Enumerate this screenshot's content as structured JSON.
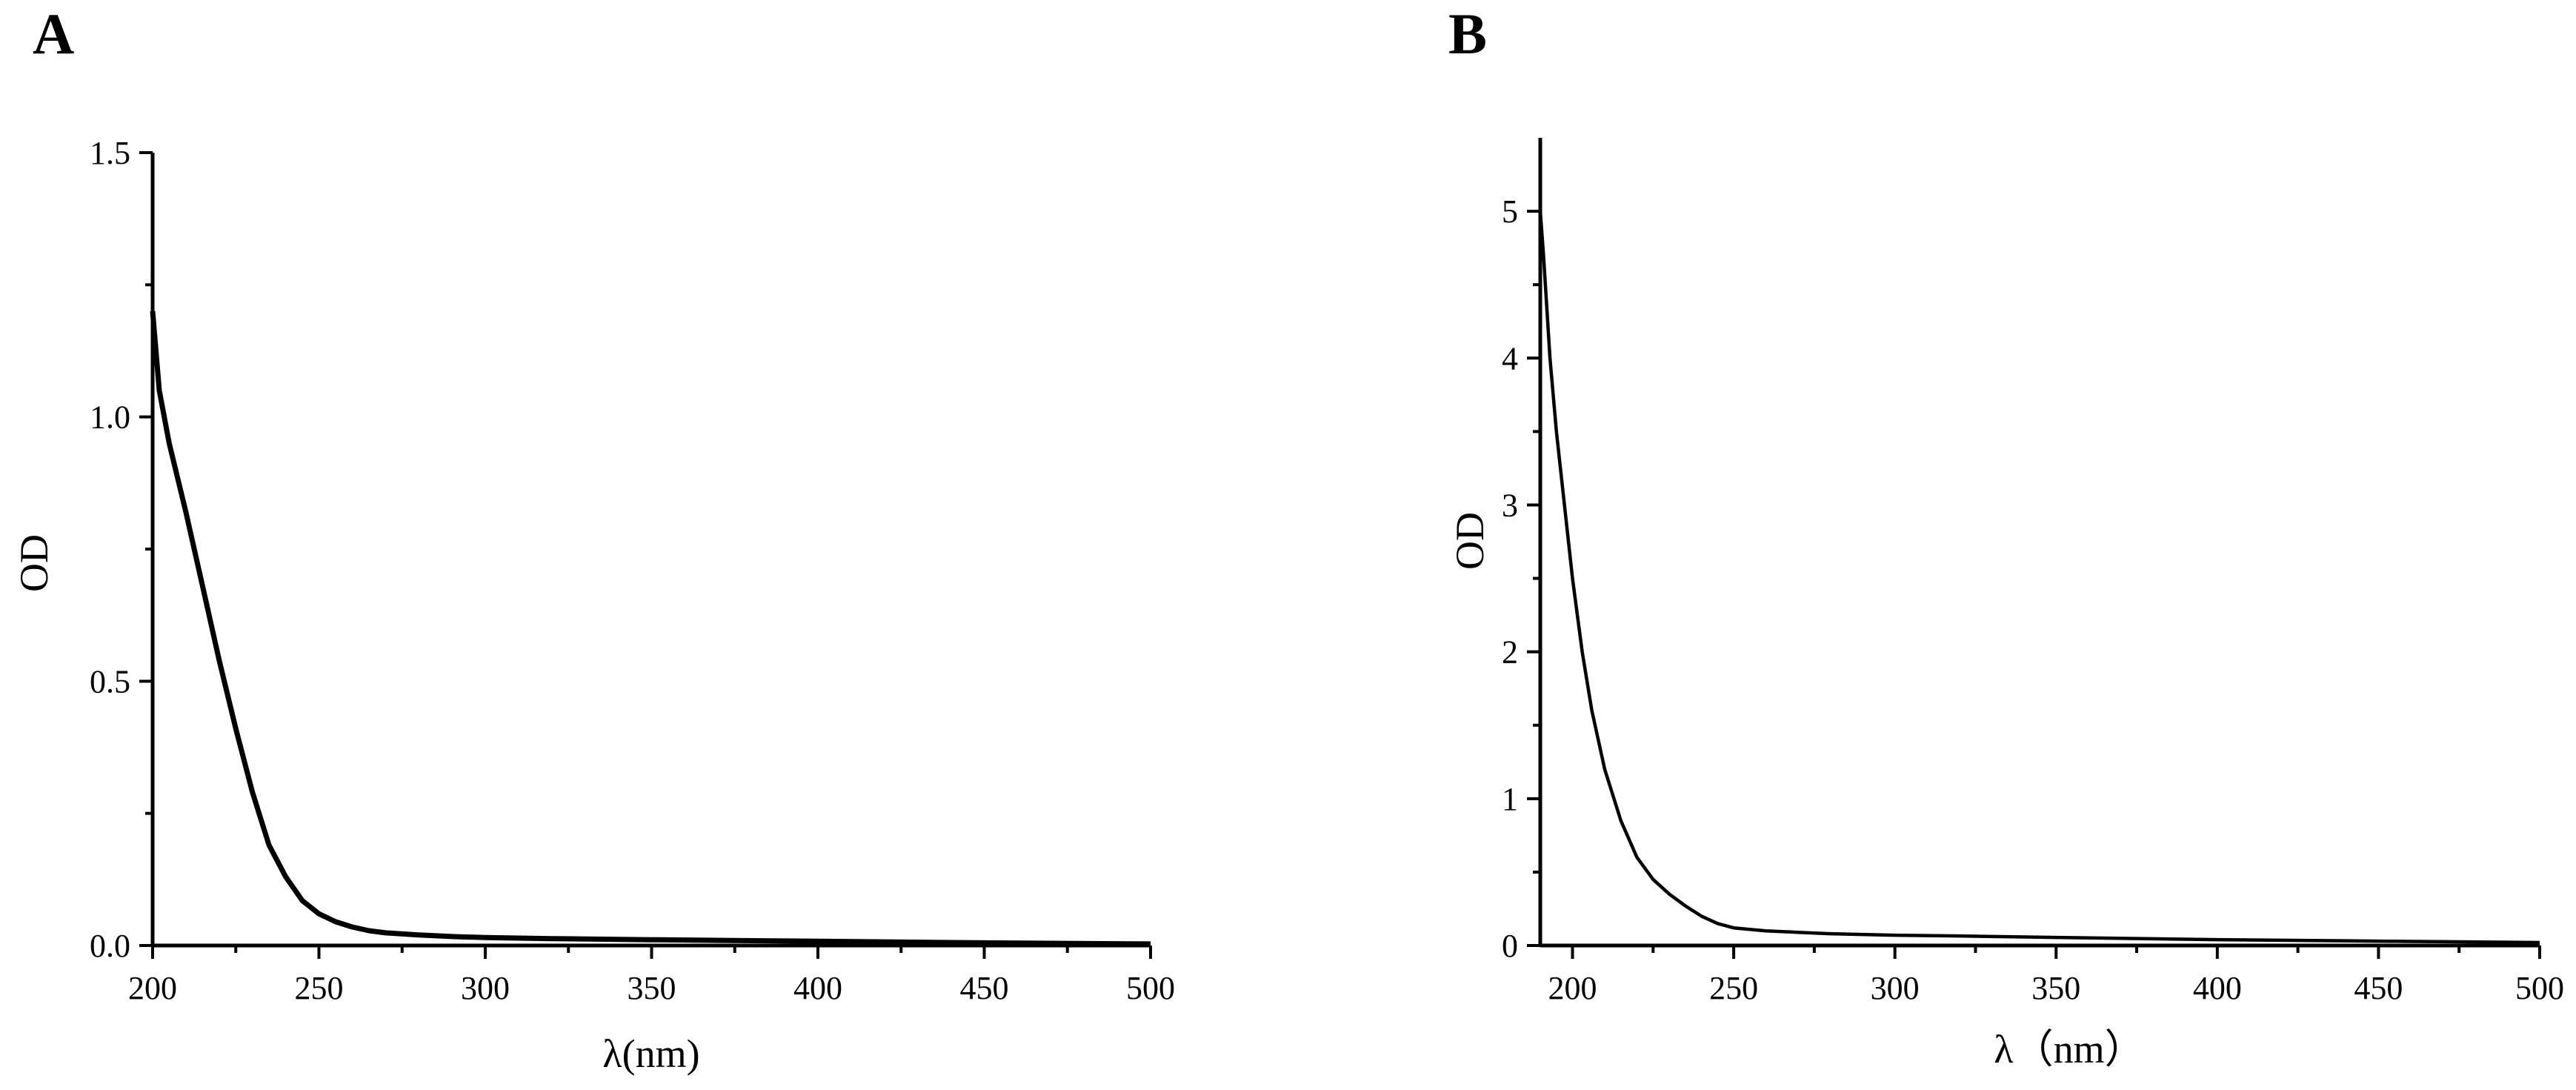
{
  "panels": {
    "a": {
      "label": "A"
    },
    "b": {
      "label": "B"
    }
  },
  "chart_data": [
    {
      "panel": "A",
      "type": "line",
      "xlabel": "λ(nm)",
      "ylabel": "OD",
      "xlim": [
        200,
        500
      ],
      "ylim": [
        0,
        1.5
      ],
      "x_ticks": [
        "200",
        "250",
        "300",
        "350",
        "400",
        "450",
        "500"
      ],
      "y_ticks": [
        "0.0",
        "0.5",
        "1.0",
        "1.5"
      ],
      "grid": false,
      "series": [
        {
          "x": [
            200,
            202,
            205,
            210,
            215,
            220,
            225,
            230,
            235,
            240,
            245,
            250,
            255,
            260,
            265,
            270,
            280,
            290,
            300,
            320,
            350,
            400,
            450,
            500
          ],
          "y": [
            1.2,
            1.05,
            0.95,
            0.82,
            0.68,
            0.54,
            0.41,
            0.29,
            0.19,
            0.13,
            0.085,
            0.06,
            0.045,
            0.035,
            0.028,
            0.024,
            0.02,
            0.017,
            0.015,
            0.013,
            0.011,
            0.008,
            0.005,
            0.003
          ]
        }
      ]
    },
    {
      "panel": "B",
      "type": "line",
      "xlabel": "λ（nm）",
      "ylabel": "OD",
      "xlim": [
        190,
        500
      ],
      "ylim": [
        0,
        5.5
      ],
      "x_ticks": [
        "200",
        "250",
        "300",
        "350",
        "400",
        "450",
        "500"
      ],
      "y_ticks": [
        "0",
        "1",
        "2",
        "3",
        "4",
        "5"
      ],
      "grid": false,
      "series": [
        {
          "x": [
            190,
            191,
            193,
            195,
            198,
            200,
            203,
            206,
            210,
            215,
            220,
            225,
            230,
            235,
            240,
            245,
            250,
            260,
            270,
            280,
            300,
            320,
            350,
            400,
            450,
            500
          ],
          "y": [
            5.0,
            4.7,
            4.0,
            3.5,
            2.9,
            2.5,
            2.0,
            1.6,
            1.2,
            0.85,
            0.6,
            0.45,
            0.35,
            0.27,
            0.2,
            0.15,
            0.12,
            0.1,
            0.09,
            0.08,
            0.07,
            0.065,
            0.055,
            0.04,
            0.03,
            0.02
          ]
        }
      ]
    }
  ]
}
